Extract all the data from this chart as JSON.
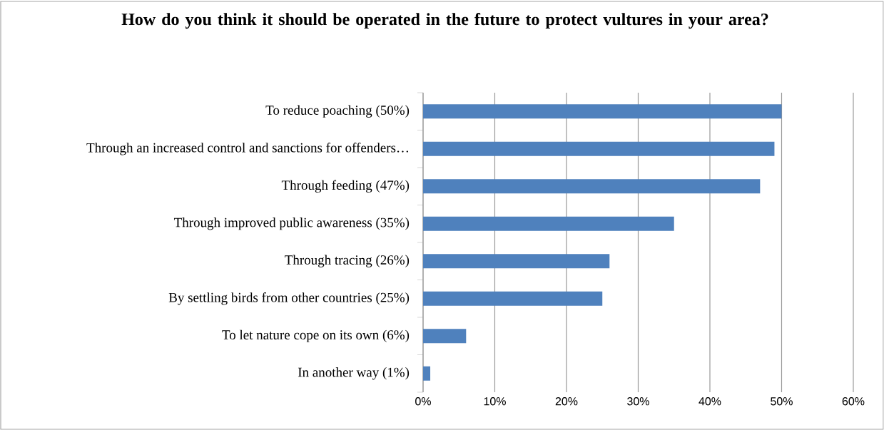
{
  "chart_data": {
    "type": "bar",
    "orientation": "horizontal",
    "title": "How do you think it should be operated in the future to protect vultures in your area?",
    "categories": [
      "To reduce poaching (50%)",
      "Through an increased control and sanctions for offenders…",
      "Through feeding (47%)",
      "Through improved public awareness  (35%)",
      "Through tracing (26%)",
      "By settling birds from other countries (25%)",
      "To let nature cope on its own (6%)",
      "In another way (1%)"
    ],
    "values": [
      50,
      49,
      47,
      35,
      26,
      25,
      6,
      1
    ],
    "color": "#4f81bd",
    "xlim": [
      0,
      60
    ],
    "xticks": [
      {
        "value": 0,
        "label": "0%"
      },
      {
        "value": 10,
        "label": "10%"
      },
      {
        "value": 20,
        "label": "20%"
      },
      {
        "value": 30,
        "label": "30%"
      },
      {
        "value": 40,
        "label": "40%"
      },
      {
        "value": 50,
        "label": "50%"
      },
      {
        "value": 60,
        "label": "60%"
      }
    ],
    "grid": "x"
  }
}
